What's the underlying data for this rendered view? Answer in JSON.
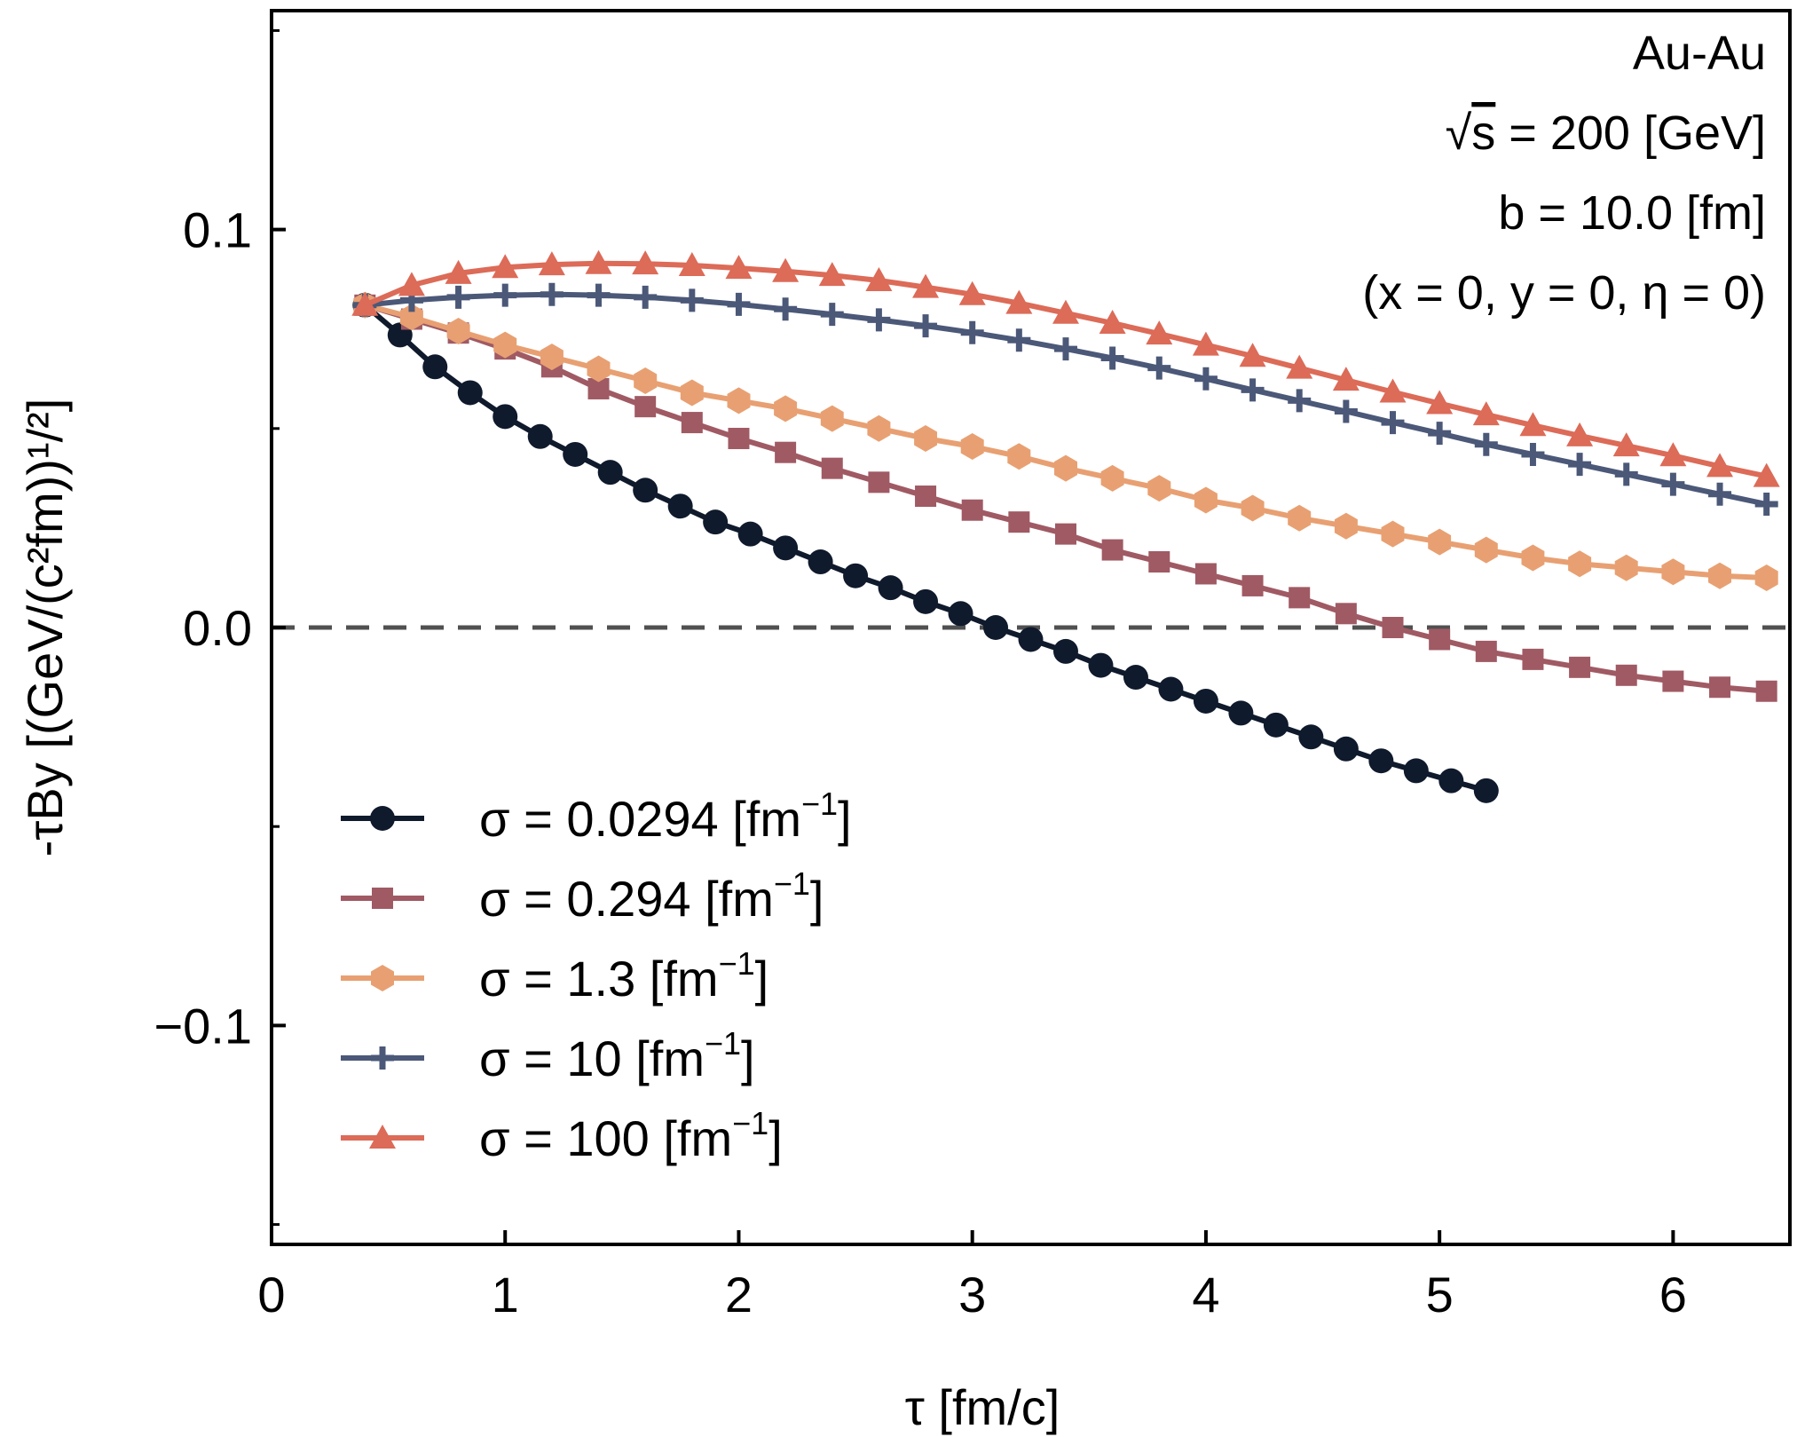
{
  "chart_data": {
    "type": "line",
    "title": "",
    "xlabel": "τ [fm/c]",
    "ylabel": "-τBy [(GeV/(c²fm))¹/²]",
    "xlim": [
      0,
      6.5
    ],
    "ylim": [
      -0.155,
      0.155
    ],
    "x_ticks": [
      0,
      1,
      2,
      3,
      4,
      5,
      6
    ],
    "x_tick_labels": [
      "0",
      "1",
      "2",
      "3",
      "4",
      "5",
      "6"
    ],
    "y_ticks": [
      -0.1,
      0.0,
      0.1
    ],
    "y_tick_labels": [
      "−0.1",
      "0.0",
      "0.1"
    ],
    "y_minor_ticks": [
      -0.15,
      -0.05,
      0.05,
      0.15
    ],
    "grid": false,
    "reference_line": {
      "y": 0.0,
      "style": "dashed",
      "color": "#505050"
    },
    "annotations": {
      "system": "Au-Au",
      "energy_sqrt": "s",
      "energy_rest": " = 200 [GeV]",
      "impact": "b = 10.0 [fm]",
      "position": "(x = 0, y = 0, η = 0)"
    },
    "legend": {
      "placement": "lower-left"
    },
    "series": [
      {
        "name": "σ = 0.0294 [fm⁻¹]",
        "label_main": "σ = 0.0294 [fm",
        "label_sup": "−1",
        "label_end": "]",
        "color": "#0f1a2c",
        "marker": "circle",
        "x": [
          0.4,
          0.55,
          0.7,
          0.85,
          1.0,
          1.15,
          1.3,
          1.45,
          1.6,
          1.75,
          1.9,
          2.05,
          2.2,
          2.35,
          2.5,
          2.65,
          2.8,
          2.95,
          3.1,
          3.25,
          3.4,
          3.55,
          3.7,
          3.85,
          4.0,
          4.15,
          4.3,
          4.45,
          4.6,
          4.75,
          4.9,
          5.05,
          5.2
        ],
        "y": [
          0.081,
          0.0735,
          0.0655,
          0.059,
          0.053,
          0.048,
          0.0435,
          0.039,
          0.0345,
          0.0305,
          0.0265,
          0.0235,
          0.02,
          0.0165,
          0.013,
          0.01,
          0.0065,
          0.0035,
          0.0,
          -0.003,
          -0.006,
          -0.0095,
          -0.0125,
          -0.0155,
          -0.0185,
          -0.0215,
          -0.0245,
          -0.0275,
          -0.0305,
          -0.0335,
          -0.036,
          -0.0385,
          -0.041
        ]
      },
      {
        "name": "σ = 0.294 [fm⁻¹]",
        "label_main": "σ = 0.294 [fm",
        "label_sup": "−1",
        "label_end": "]",
        "color": "#a05a64",
        "marker": "square",
        "x": [
          0.4,
          0.6,
          0.8,
          1.0,
          1.2,
          1.4,
          1.6,
          1.8,
          2.0,
          2.2,
          2.4,
          2.6,
          2.8,
          3.0,
          3.2,
          3.4,
          3.6,
          3.8,
          4.0,
          4.2,
          4.4,
          4.6,
          4.8,
          5.0,
          5.2,
          5.4,
          5.6,
          5.8,
          6.0,
          6.2,
          6.4
        ],
        "y": [
          0.081,
          0.0775,
          0.074,
          0.07,
          0.0655,
          0.06,
          0.0555,
          0.0515,
          0.0475,
          0.044,
          0.04,
          0.0365,
          0.033,
          0.0295,
          0.0265,
          0.0235,
          0.0195,
          0.0165,
          0.0135,
          0.0105,
          0.0075,
          0.0035,
          0.0,
          -0.003,
          -0.006,
          -0.008,
          -0.01,
          -0.012,
          -0.0135,
          -0.015,
          -0.016
        ]
      },
      {
        "name": "σ = 1.3 [fm⁻¹]",
        "label_main": "σ = 1.3 [fm",
        "label_sup": "−1",
        "label_end": "]",
        "color": "#e8a072",
        "marker": "hexagon",
        "x": [
          0.4,
          0.6,
          0.8,
          1.0,
          1.2,
          1.4,
          1.6,
          1.8,
          2.0,
          2.2,
          2.4,
          2.6,
          2.8,
          3.0,
          3.2,
          3.4,
          3.6,
          3.8,
          4.0,
          4.2,
          4.4,
          4.6,
          4.8,
          5.0,
          5.2,
          5.4,
          5.6,
          5.8,
          6.0,
          6.2,
          6.4
        ],
        "y": [
          0.081,
          0.078,
          0.0745,
          0.071,
          0.068,
          0.065,
          0.062,
          0.059,
          0.057,
          0.055,
          0.0525,
          0.05,
          0.0475,
          0.0455,
          0.043,
          0.04,
          0.0375,
          0.035,
          0.032,
          0.03,
          0.0275,
          0.0255,
          0.0235,
          0.0215,
          0.0195,
          0.0175,
          0.016,
          0.015,
          0.014,
          0.013,
          0.0125
        ]
      },
      {
        "name": "σ = 10 [fm⁻¹]",
        "label_main": "σ = 10 [fm",
        "label_sup": "−1",
        "label_end": "]",
        "color": "#4b5878",
        "marker": "plus",
        "x": [
          0.4,
          0.6,
          0.8,
          1.0,
          1.2,
          1.4,
          1.6,
          1.8,
          2.0,
          2.2,
          2.4,
          2.6,
          2.8,
          3.0,
          3.2,
          3.4,
          3.6,
          3.8,
          4.0,
          4.2,
          4.4,
          4.6,
          4.8,
          5.0,
          5.2,
          5.4,
          5.6,
          5.8,
          6.0,
          6.2,
          6.4
        ],
        "y": [
          0.081,
          0.0822,
          0.083,
          0.0835,
          0.0837,
          0.0835,
          0.083,
          0.0822,
          0.0812,
          0.08,
          0.0787,
          0.0773,
          0.0758,
          0.0741,
          0.0722,
          0.07,
          0.0677,
          0.0652,
          0.0625,
          0.0597,
          0.057,
          0.0543,
          0.0515,
          0.0488,
          0.046,
          0.0435,
          0.041,
          0.0385,
          0.036,
          0.0335,
          0.031
        ]
      },
      {
        "name": "σ = 100 [fm⁻¹]",
        "label_main": "σ = 100 [fm",
        "label_sup": "−1",
        "label_end": "]",
        "color": "#dc6b58",
        "marker": "triangle",
        "x": [
          0.4,
          0.6,
          0.8,
          1.0,
          1.2,
          1.4,
          1.6,
          1.8,
          2.0,
          2.2,
          2.4,
          2.6,
          2.8,
          3.0,
          3.2,
          3.4,
          3.6,
          3.8,
          4.0,
          4.2,
          4.4,
          4.6,
          4.8,
          5.0,
          5.2,
          5.4,
          5.6,
          5.8,
          6.0,
          6.2,
          6.4
        ],
        "y": [
          0.081,
          0.086,
          0.089,
          0.0905,
          0.0912,
          0.0915,
          0.0914,
          0.091,
          0.0903,
          0.0895,
          0.0885,
          0.0872,
          0.0855,
          0.0837,
          0.0815,
          0.079,
          0.0765,
          0.0738,
          0.071,
          0.0682,
          0.0652,
          0.0622,
          0.0592,
          0.0563,
          0.0535,
          0.0508,
          0.0482,
          0.0457,
          0.0432,
          0.0405,
          0.038
        ]
      }
    ]
  }
}
